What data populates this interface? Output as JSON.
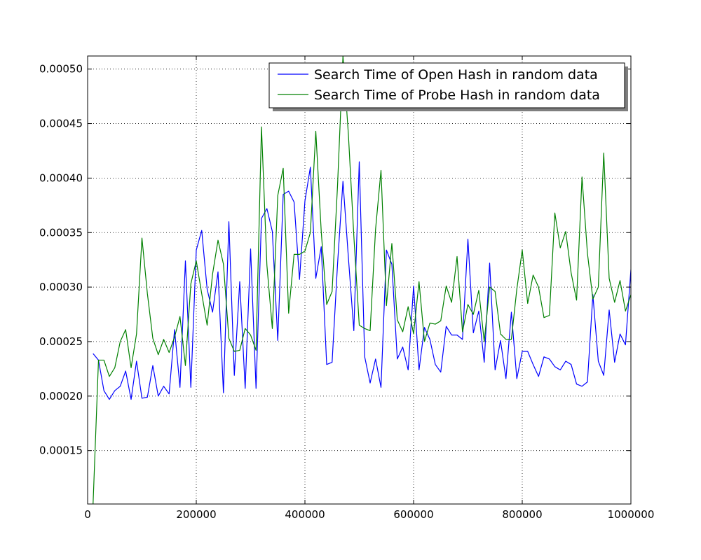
{
  "chart_data": {
    "type": "line",
    "title": "",
    "xlabel": "",
    "ylabel": "",
    "xlim": [
      0,
      1000000
    ],
    "ylim": [
      0.000101,
      0.000512
    ],
    "grid": true,
    "legend_position": "top-right",
    "x_ticks": [
      0,
      200000,
      400000,
      600000,
      800000,
      1000000
    ],
    "x_tick_labels": [
      "0",
      "200000",
      "400000",
      "600000",
      "800000",
      "1000000"
    ],
    "y_ticks": [
      0.00015,
      0.0002,
      0.00025,
      0.0003,
      0.00035,
      0.0004,
      0.00045,
      0.0005
    ],
    "y_tick_labels": [
      "0.00015",
      "0.00020",
      "0.00025",
      "0.00030",
      "0.00035",
      "0.00040",
      "0.00045",
      "0.00050"
    ],
    "x": [
      10000,
      20000,
      30000,
      40000,
      50000,
      60000,
      70000,
      80000,
      90000,
      100000,
      110000,
      120000,
      130000,
      140000,
      150000,
      160000,
      170000,
      180000,
      190000,
      200000,
      210000,
      220000,
      230000,
      240000,
      250000,
      260000,
      270000,
      280000,
      290000,
      300000,
      310000,
      320000,
      330000,
      340000,
      350000,
      360000,
      370000,
      380000,
      390000,
      400000,
      410000,
      420000,
      430000,
      440000,
      450000,
      460000,
      470000,
      480000,
      490000,
      500000,
      510000,
      520000,
      530000,
      540000,
      550000,
      560000,
      570000,
      580000,
      590000,
      600000,
      610000,
      620000,
      630000,
      640000,
      650000,
      660000,
      670000,
      680000,
      690000,
      700000,
      710000,
      720000,
      730000,
      740000,
      750000,
      760000,
      770000,
      780000,
      790000,
      800000,
      810000,
      820000,
      830000,
      840000,
      850000,
      860000,
      870000,
      880000,
      890000,
      900000,
      910000,
      920000,
      930000,
      940000,
      950000,
      960000,
      970000,
      980000,
      990000,
      1000000
    ],
    "series": [
      {
        "name": "Search Time of Open Hash in random data",
        "color": "#0000ff",
        "values": [
          0.000239,
          0.000233,
          0.000205,
          0.000197,
          0.000205,
          0.000209,
          0.000223,
          0.000197,
          0.000232,
          0.000198,
          0.000199,
          0.000228,
          0.0002,
          0.000209,
          0.000202,
          0.000261,
          0.000208,
          0.000324,
          0.000208,
          0.000334,
          0.000352,
          0.000298,
          0.000277,
          0.000314,
          0.000203,
          0.00036,
          0.000219,
          0.000305,
          0.000207,
          0.000335,
          0.000207,
          0.000363,
          0.000372,
          0.000351,
          0.000251,
          0.000385,
          0.000388,
          0.000378,
          0.000307,
          0.000379,
          0.00041,
          0.000308,
          0.000337,
          0.000229,
          0.000231,
          0.000321,
          0.000397,
          0.000327,
          0.00026,
          0.000415,
          0.000236,
          0.000212,
          0.000234,
          0.000208,
          0.000334,
          0.000321,
          0.000234,
          0.000245,
          0.000224,
          0.000301,
          0.000224,
          0.000263,
          0.000252,
          0.000229,
          0.000222,
          0.000264,
          0.000256,
          0.000256,
          0.000252,
          0.000344,
          0.000258,
          0.000278,
          0.000231,
          0.000322,
          0.000224,
          0.000251,
          0.000216,
          0.000277,
          0.000216,
          0.000241,
          0.000241,
          0.000229,
          0.000218,
          0.000236,
          0.000234,
          0.000227,
          0.000224,
          0.000232,
          0.000229,
          0.000211,
          0.000209,
          0.000213,
          0.000293,
          0.000232,
          0.000219,
          0.000279,
          0.000231,
          0.000257,
          0.000247,
          0.000316
        ]
      },
      {
        "name": "Search Time of Probe Hash in random data",
        "color": "#008000",
        "values": [
          0.000101,
          0.000233,
          0.000233,
          0.000218,
          0.000226,
          0.00025,
          0.000261,
          0.000226,
          0.000257,
          0.000345,
          0.000294,
          0.000253,
          0.000238,
          0.000252,
          0.00024,
          0.000254,
          0.000273,
          0.000228,
          0.000303,
          0.000324,
          0.000294,
          0.000265,
          0.000312,
          0.000343,
          0.000321,
          0.000253,
          0.000241,
          0.000242,
          0.000262,
          0.000256,
          0.000242,
          0.000447,
          0.00032,
          0.000262,
          0.000384,
          0.000409,
          0.000276,
          0.00033,
          0.00033,
          0.000333,
          0.00035,
          0.000443,
          0.000351,
          0.000284,
          0.000296,
          0.000393,
          0.000512,
          0.00044,
          0.000347,
          0.000265,
          0.000262,
          0.00026,
          0.000353,
          0.000407,
          0.000283,
          0.00034,
          0.00027,
          0.000259,
          0.000282,
          0.000257,
          0.000305,
          0.00025,
          0.000267,
          0.000266,
          0.000269,
          0.000301,
          0.000286,
          0.000328,
          0.000259,
          0.000284,
          0.000275,
          0.000297,
          0.00025,
          0.0003,
          0.000296,
          0.000257,
          0.000252,
          0.000252,
          0.000298,
          0.000334,
          0.000285,
          0.000311,
          0.0003,
          0.000272,
          0.000274,
          0.000368,
          0.000336,
          0.000351,
          0.000313,
          0.000288,
          0.000401,
          0.000331,
          0.000289,
          0.0003,
          0.000423,
          0.000308,
          0.000286,
          0.000306,
          0.000278,
          0.000293
        ]
      }
    ]
  }
}
